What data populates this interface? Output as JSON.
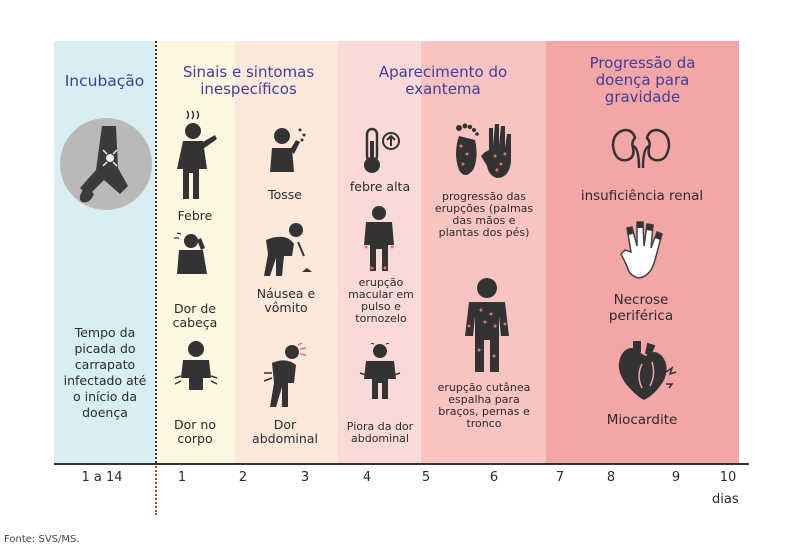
{
  "phases": [
    {
      "title": "Incubação",
      "color": "#d9eef3"
    },
    {
      "title": "Sinais e sintomas inespecíficos",
      "color": "#fdf3df"
    },
    {
      "title": "Aparecimento do exantema",
      "color": "#f9dcd9"
    },
    {
      "title": "Progressão da doença para gravidade",
      "color": "#f3a6a6"
    }
  ],
  "incubation_text": "Tempo da picada do carrapato infectado até o início da doença",
  "symptoms": {
    "febre": "Febre",
    "dor_cabeca": "Dor de cabeça",
    "dor_corpo": "Dor no corpo",
    "tosse": "Tosse",
    "nausea": "Náusea e vômito",
    "dor_abdominal": "Dor abdominal",
    "febre_alta": "febre alta",
    "erupcao_macular": "erupção macular em pulso e tornozelo",
    "piora_dor_abdominal": "Piora da dor abdominal",
    "progressao_erupcoes": "progressão das erupções (palmas das mãos e plantas dos pés)",
    "erupcao_cutanea": "erupção cutânea espalha para braços, pernas e tronco",
    "insuficiencia_renal": "insuficiência renal",
    "necrose": "Necrose periférica",
    "miocardite": "Miocardite"
  },
  "axis": {
    "ticks": [
      "1 a 14",
      "1",
      "2",
      "3",
      "4",
      "5",
      "6",
      "7",
      "8",
      "9",
      "10"
    ],
    "unit": "dias"
  },
  "source": "Fonte: SVS/MS."
}
